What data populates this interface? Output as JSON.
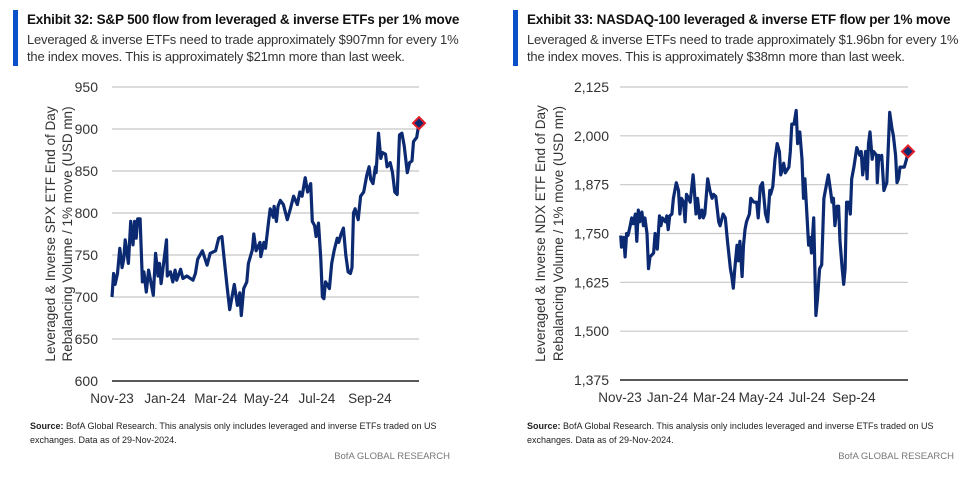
{
  "chart_data": [
    {
      "type": "line",
      "title": "Exhibit 32: S&P 500 flow from leveraged & inverse ETFs per 1% move",
      "subtitle_lines": [
        "Leveraged & inverse ETFs need to trade approximately $907mn for every 1%",
        "the index moves. This is approximately $21mn more than last week."
      ],
      "ylabel_lines": [
        "Leveraged & Inverse SPX ETF End of Day",
        "Rebalancing Volume / 1% move (USD mn)"
      ],
      "ylim": [
        600,
        950
      ],
      "yticks": [
        600,
        650,
        700,
        750,
        800,
        850,
        900,
        950
      ],
      "xlim": [
        0,
        394
      ],
      "xticks": [
        {
          "label": "Nov-23",
          "x": 0
        },
        {
          "label": "Jan-24",
          "x": 68
        },
        {
          "label": "Mar-24",
          "x": 133
        },
        {
          "label": "May-24",
          "x": 198
        },
        {
          "label": "Jul-24",
          "x": 263
        },
        {
          "label": "Sep-24",
          "x": 331
        }
      ],
      "x_unit": "days since start of Nov-2023",
      "line_color": "#0c2a72",
      "marker_color": "#e0202a",
      "last_value": 907,
      "x": [
        0,
        2,
        4,
        7,
        10,
        13,
        15,
        17,
        21,
        24,
        27,
        29,
        31,
        33,
        36,
        39,
        41,
        44,
        47,
        49,
        53,
        56,
        59,
        61,
        63,
        66,
        70,
        71,
        75,
        78,
        81,
        83,
        88,
        91,
        96,
        104,
        107,
        110,
        116,
        122,
        126,
        133,
        137,
        141,
        144,
        148,
        151,
        154,
        157,
        161,
        164,
        166,
        169,
        173,
        175,
        180,
        182,
        185,
        190,
        191,
        195,
        197,
        201,
        203,
        207,
        208,
        211,
        213,
        216,
        220,
        225,
        229,
        233,
        238,
        241,
        244,
        248,
        251,
        255,
        257,
        260,
        262,
        265,
        268,
        270,
        272,
        274,
        276,
        279,
        282,
        285,
        289,
        291,
        294,
        297,
        300,
        303,
        306,
        308,
        310,
        312,
        316,
        319,
        323,
        327,
        330,
        332,
        335,
        338,
        339,
        342,
        345,
        347,
        351,
        353,
        357,
        360,
        363,
        366,
        369,
        372,
        375,
        379,
        382,
        385,
        387,
        391,
        394
      ],
      "y": [
        700,
        728,
        715,
        728,
        758,
        735,
        745,
        768,
        740,
        790,
        762,
        790,
        770,
        793,
        793,
        718,
        730,
        706,
        732,
        722,
        702,
        752,
        725,
        740,
        716,
        738,
        768,
        725,
        730,
        718,
        732,
        720,
        733,
        722,
        725,
        720,
        728,
        745,
        755,
        738,
        752,
        755,
        770,
        772,
        745,
        710,
        685,
        700,
        715,
        690,
        705,
        678,
        710,
        718,
        740,
        756,
        775,
        755,
        765,
        748,
        765,
        758,
        790,
        805,
        795,
        808,
        790,
        808,
        815,
        810,
        792,
        805,
        820,
        810,
        825,
        820,
        842,
        825,
        835,
        790,
        785,
        772,
        788,
        745,
        700,
        698,
        718,
        715,
        710,
        740,
        755,
        770,
        765,
        775,
        782,
        750,
        730,
        728,
        735,
        800,
        805,
        792,
        820,
        825,
        845,
        855,
        840,
        835,
        855,
        848,
        895,
        865,
        872,
        870,
        855,
        860,
        848,
        825,
        822,
        893,
        895,
        880,
        848,
        860,
        862,
        885,
        890,
        907
      ]
    },
    {
      "type": "line",
      "title": "Exhibit 33: NASDAQ-100 leveraged & inverse ETF flow per 1% move",
      "subtitle_lines": [
        "Leveraged & inverse ETFs need to trade approximately $1.96bn for every 1%",
        "the index moves. This is approximately $38mn more than last week."
      ],
      "ylabel_lines": [
        "Leveraged & Inverse NDX ETF End of Day",
        "Rebalancing Volume / 1% move (USD mn)"
      ],
      "ylim": [
        1375,
        2125
      ],
      "yticks": [
        1375,
        1500,
        1625,
        1750,
        1875,
        2000,
        2125
      ],
      "ytick_labels": [
        "1,375",
        "1,500",
        "1,625",
        "1,750",
        "1,875",
        "2,000",
        "2,125"
      ],
      "xlim": [
        0,
        394
      ],
      "xticks": [
        {
          "label": "Nov-23",
          "x": 0
        },
        {
          "label": "Jan-24",
          "x": 65
        },
        {
          "label": "Mar-24",
          "x": 129
        },
        {
          "label": "May-24",
          "x": 193
        },
        {
          "label": "Jul-24",
          "x": 256
        },
        {
          "label": "Sep-24",
          "x": 320
        }
      ],
      "x_unit": "days since start of Nov-2023",
      "line_color": "#0c2a72",
      "marker_color": "#e0202a",
      "last_value": 1960,
      "x": [
        1,
        2,
        5,
        7,
        9,
        11,
        14,
        16,
        18,
        21,
        23,
        25,
        27,
        30,
        32,
        34,
        37,
        39,
        41,
        46,
        48,
        51,
        54,
        56,
        58,
        62,
        64,
        66,
        68,
        71,
        73,
        77,
        80,
        82,
        84,
        87,
        89,
        91,
        94,
        96,
        100,
        101,
        104,
        106,
        109,
        112,
        114,
        116,
        120,
        123,
        126,
        128,
        131,
        135,
        137,
        141,
        144,
        147,
        151,
        153,
        155,
        157,
        160,
        162,
        164,
        167,
        169,
        171,
        173,
        177,
        179,
        183,
        187,
        189,
        192,
        195,
        199,
        202,
        205,
        206,
        209,
        212,
        215,
        218,
        220,
        224,
        226,
        231,
        233,
        235,
        238,
        241,
        243,
        246,
        249,
        251,
        253,
        256,
        258,
        260,
        262,
        265,
        267,
        268,
        270,
        273,
        276,
        279,
        282,
        285,
        288,
        290,
        292,
        294,
        297,
        299,
        301,
        304,
        306,
        308,
        310,
        313,
        315,
        317,
        320,
        324,
        328,
        330,
        332,
        336,
        338,
        340,
        342,
        345,
        347,
        351,
        352,
        354,
        356,
        358,
        361,
        363,
        365,
        369,
        372,
        374,
        377,
        379,
        381,
        383,
        385,
        389,
        392,
        394
      ],
      "y": [
        1745,
        1715,
        1740,
        1690,
        1750,
        1745,
        1770,
        1790,
        1775,
        1800,
        1730,
        1810,
        1780,
        1805,
        1770,
        1790,
        1750,
        1660,
        1690,
        1700,
        1750,
        1710,
        1795,
        1770,
        1790,
        1780,
        1795,
        1760,
        1795,
        1800,
        1840,
        1880,
        1860,
        1800,
        1840,
        1830,
        1780,
        1850,
        1840,
        1830,
        1900,
        1880,
        1800,
        1840,
        1790,
        1810,
        1790,
        1800,
        1890,
        1860,
        1840,
        1850,
        1845,
        1780,
        1770,
        1800,
        1790,
        1730,
        1660,
        1640,
        1610,
        1660,
        1720,
        1680,
        1730,
        1640,
        1720,
        1760,
        1780,
        1800,
        1840,
        1830,
        1830,
        1790,
        1870,
        1880,
        1800,
        1780,
        1860,
        1850,
        1870,
        1940,
        1980,
        1960,
        1900,
        1930,
        1905,
        1920,
        1960,
        2030,
        2030,
        2065,
        1980,
        2010,
        1940,
        1840,
        1890,
        1790,
        1720,
        1740,
        1700,
        1790,
        1620,
        1540,
        1580,
        1660,
        1670,
        1840,
        1870,
        1900,
        1860,
        1830,
        1840,
        1770,
        1820,
        1820,
        1730,
        1660,
        1620,
        1660,
        1830,
        1830,
        1800,
        1890,
        1920,
        1970,
        1950,
        1960,
        1900,
        1960,
        1890,
        1980,
        2010,
        1940,
        1960,
        1950,
        1880,
        1950,
        1940,
        1950,
        1860,
        1870,
        1880,
        2060,
        2020,
        2000,
        1950,
        1880,
        1890,
        1920,
        1920,
        1920,
        1940,
        1960
      ]
    }
  ],
  "footer": {
    "source_label": "Source:",
    "source_text": " BofA Global Research.  This analysis only includes leveraged and inverse ETFs traded on US exchanges.  Data as of 29-Nov-2024.",
    "brand": "BofA GLOBAL RESEARCH"
  },
  "colors": {
    "accent_bar": "#0a50c8",
    "grid": "#c8c8c8",
    "axis": "#222222"
  }
}
